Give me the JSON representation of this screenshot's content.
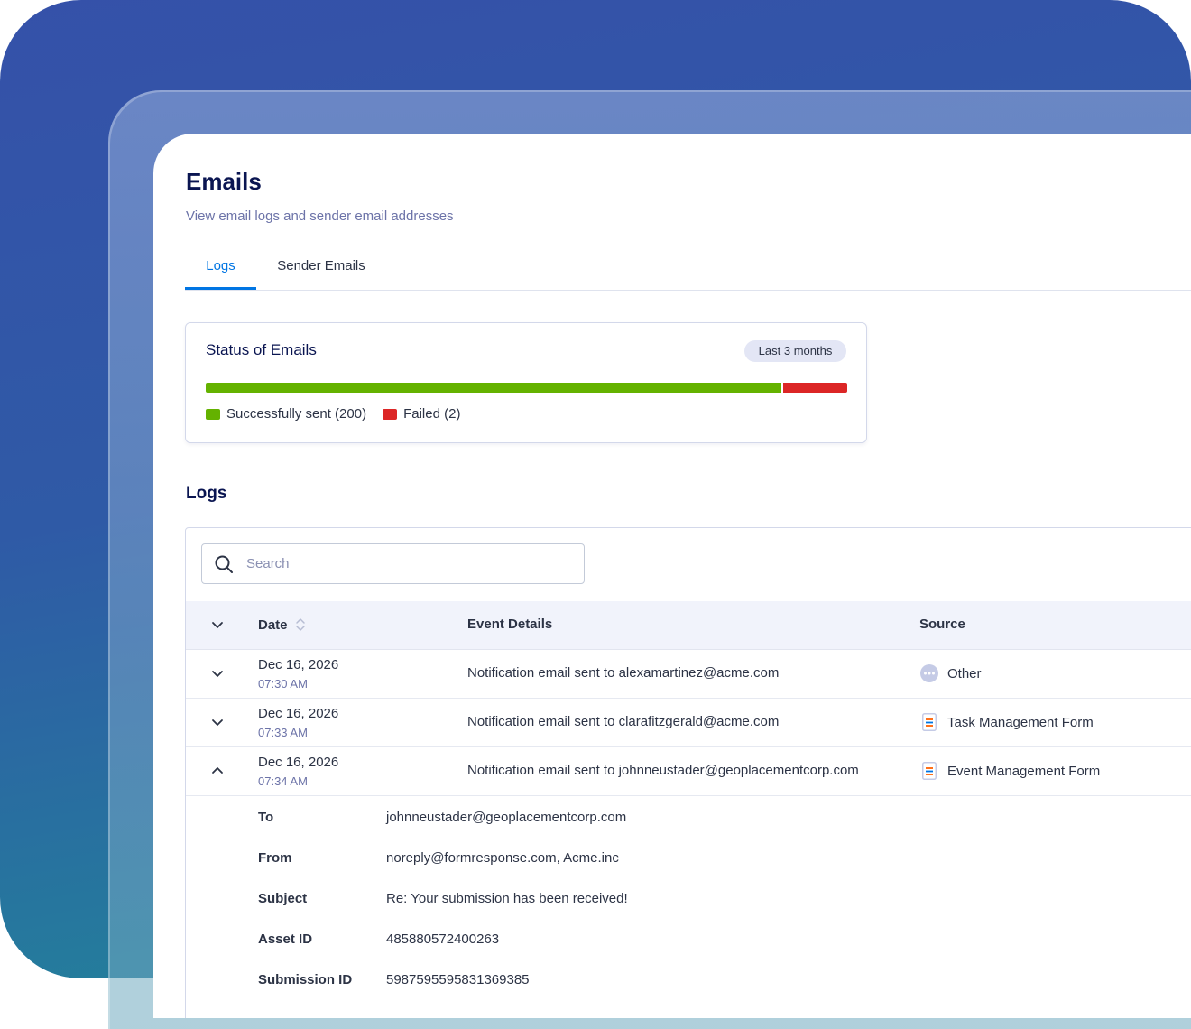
{
  "page": {
    "title": "Emails",
    "subtitle": "View email logs and sender email addresses"
  },
  "tabs": [
    {
      "label": "Logs",
      "active": true
    },
    {
      "label": "Sender Emails",
      "active": false
    }
  ],
  "status": {
    "title": "Status of Emails",
    "range": "Last 3 months",
    "sent_count": 200,
    "failed_count": 2,
    "sent_label": "Successfully sent (200)",
    "failed_label": "Failed (2)",
    "colors": {
      "sent": "#64b200",
      "failed": "#dc2626"
    }
  },
  "logs": {
    "heading": "Logs",
    "search_placeholder": "Search",
    "columns": {
      "date": "Date",
      "event": "Event Details",
      "source": "Source"
    },
    "rows": [
      {
        "date": "Dec 16, 2026",
        "time": "07:30 AM",
        "event": "Notification email sent to alexamartinez@acme.com",
        "source": "Other",
        "source_icon": "more-dots-icon",
        "expanded": false
      },
      {
        "date": "Dec 16, 2026",
        "time": "07:33 AM",
        "event": "Notification email sent to clarafitzgerald@acme.com",
        "source": "Task Management Form",
        "source_icon": "form-icon",
        "expanded": false
      },
      {
        "date": "Dec 16, 2026",
        "time": "07:34 AM",
        "event": "Notification email sent to johnneustader@geoplacementcorp.com",
        "source": "Event Management Form",
        "source_icon": "form-icon",
        "expanded": true
      }
    ],
    "details": [
      {
        "label": "To",
        "value": "johnneustader@geoplacementcorp.com"
      },
      {
        "label": "From",
        "value": "noreply@formresponse.com, Acme.inc"
      },
      {
        "label": "Subject",
        "value": "Re: Your submission has been received!"
      },
      {
        "label": "Asset ID",
        "value": "485880572400263"
      },
      {
        "label": "Submission ID",
        "value": "5987595595831369385"
      }
    ]
  },
  "colors": {
    "accent": "#0075e3",
    "title": "#0a1551"
  }
}
